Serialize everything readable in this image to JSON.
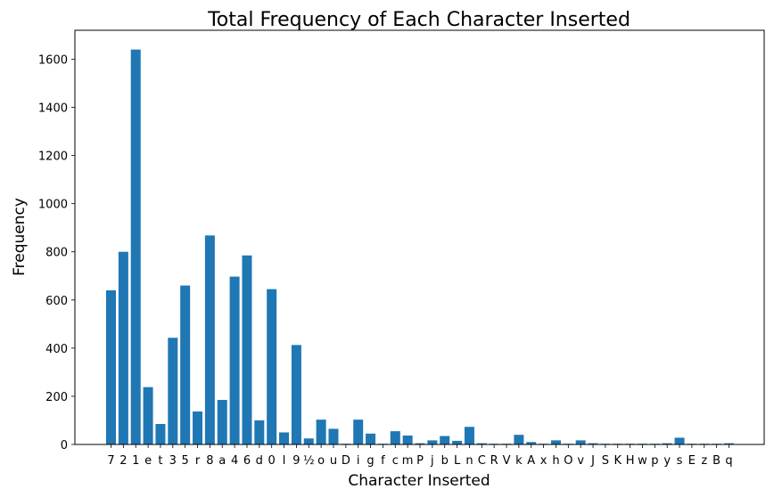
{
  "chart_data": {
    "type": "bar",
    "title": "Total Frequency of Each Character Inserted",
    "xlabel": "Character Inserted",
    "ylabel": "Frequency",
    "ylim": [
      0,
      1720
    ],
    "yticks": [
      0,
      200,
      400,
      600,
      800,
      1000,
      1200,
      1400,
      1600
    ],
    "grid": false,
    "bar_color": "#1f77b4",
    "categories": [
      "7",
      "2",
      "1",
      "e",
      "t",
      "3",
      "5",
      "r",
      "8",
      "a",
      "4",
      "6",
      "d",
      "0",
      "l",
      "9",
      "½",
      "o",
      "u",
      "D",
      "i",
      "g",
      "f",
      "c",
      "m",
      "P",
      "j",
      "b",
      "L",
      "n",
      "C",
      "R",
      "V",
      "k",
      "A",
      "x",
      "h",
      "O",
      "v",
      "J",
      "S",
      "K",
      "H",
      "w",
      "p",
      "y",
      "s",
      "E",
      "z",
      "B",
      "q"
    ],
    "values": [
      640,
      800,
      1640,
      238,
      85,
      443,
      660,
      137,
      868,
      185,
      697,
      785,
      100,
      645,
      50,
      413,
      25,
      103,
      65,
      3,
      103,
      45,
      3,
      55,
      37,
      5,
      17,
      35,
      15,
      73,
      5,
      3,
      3,
      40,
      10,
      3,
      17,
      3,
      17,
      5,
      3,
      3,
      3,
      3,
      3,
      5,
      28,
      3,
      3,
      3,
      5
    ]
  }
}
